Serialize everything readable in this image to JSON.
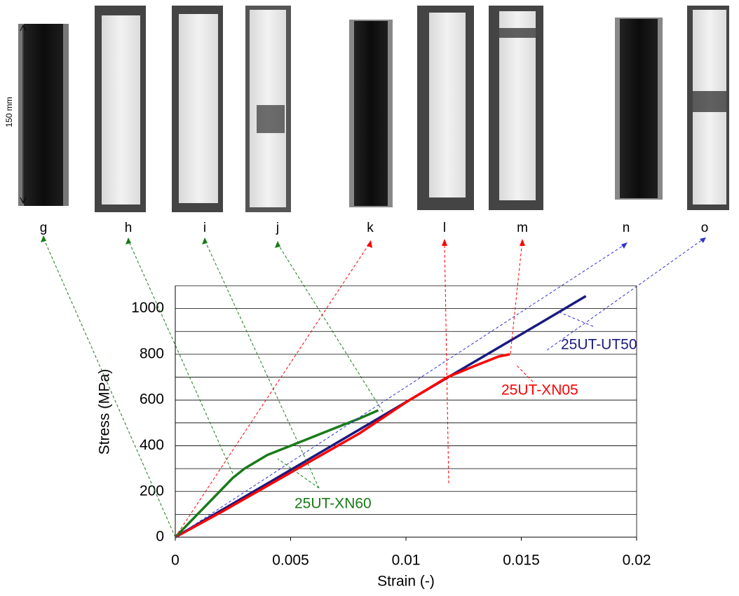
{
  "chart_data": {
    "type": "line",
    "x_label": "Strain (-)",
    "y_label": "Stress (MPa)",
    "xlim": [
      0,
      0.02
    ],
    "xticks": [
      0,
      0.005,
      0.01,
      0.015,
      0.02
    ],
    "ylim": [
      0,
      1100
    ],
    "yticks": [
      0,
      200,
      400,
      600,
      800,
      1000
    ],
    "minor_yticks": [
      100,
      300,
      500,
      700,
      900,
      1100
    ],
    "grid": true,
    "series": [
      {
        "name": "25UT-UT50",
        "color": "#1a1a80",
        "x": [
          0,
          0.004,
          0.008,
          0.012,
          0.016,
          0.0178
        ],
        "values": [
          0,
          235,
          472,
          710,
          947,
          1055
        ]
      },
      {
        "name": "25UT-XN05",
        "color": "#ff0000",
        "x": [
          0,
          0.002,
          0.004,
          0.006,
          0.008,
          0.01,
          0.0118,
          0.013,
          0.014,
          0.0145
        ],
        "values": [
          0,
          110,
          225,
          340,
          455,
          590,
          700,
          750,
          790,
          800
        ]
      },
      {
        "name": "25UT-XN60",
        "color": "#1a7a1a",
        "x": [
          0,
          0.0025,
          0.003,
          0.004,
          0.005,
          0.006,
          0.007,
          0.008,
          0.0088
        ],
        "values": [
          0,
          260,
          300,
          360,
          400,
          440,
          480,
          520,
          555
        ]
      }
    ],
    "photo_labels": [
      "g",
      "h",
      "i",
      "j",
      "k",
      "l",
      "m",
      "n",
      "o"
    ],
    "length_annotation": "150 mm"
  }
}
